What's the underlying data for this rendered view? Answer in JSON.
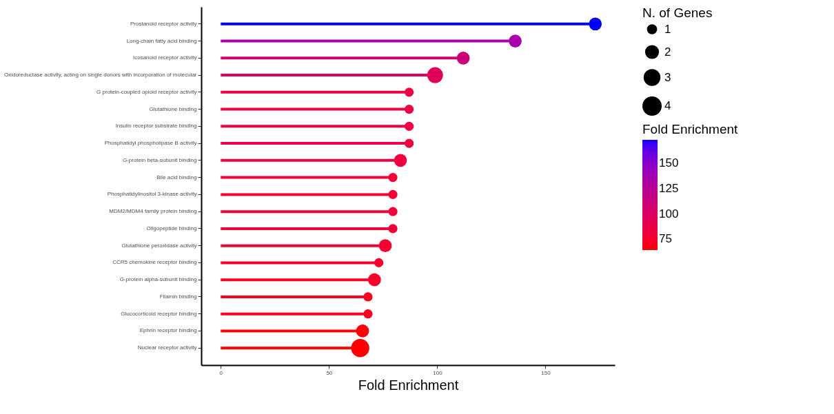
{
  "chart_data": {
    "type": "lollipop",
    "orientation": "horizontal",
    "categories": [
      "Prostanoid receptor activity",
      "Long-chain fatty acid binding",
      "Icosanoid receptor activity",
      "Oxidoreductase activity, acting on single donors with incorporation of molecular",
      "G protein-coupled opioid receptor activity",
      "Glutathione binding",
      "Insulin receptor substrate binding",
      "Phosphatidyl phospholipase B activity",
      "G-protein beta-subunit binding",
      "Bile acid binding",
      "Phosphatidylinositol 3-kinase activity",
      "MDM2/MDM4 family protein binding",
      "Oligopeptide binding",
      "Glutathione peroxidase activity",
      "CCR5 chemokine receptor binding",
      "G-protein alpha-subunit binding",
      "Filamin binding",
      "Glucocorticoid receptor binding",
      "Ephrin receptor binding",
      "Nuclear receptor activity"
    ],
    "values": [
      173,
      136,
      112,
      99,
      87,
      87,
      87,
      87,
      83,
      79.5,
      79.5,
      79.5,
      79.5,
      76,
      73,
      71,
      68,
      68,
      65.5,
      64.4
    ],
    "sizes": [
      2,
      2,
      2,
      3,
      1,
      1,
      1,
      1,
      2,
      1,
      1,
      1,
      1,
      2,
      1,
      2,
      1,
      1,
      2,
      4
    ],
    "size_legend": [
      1,
      2,
      3,
      4
    ],
    "colors": [
      "#0000ff",
      "#aa00aa",
      "#cc0077",
      "#e0005a",
      "#ee0044",
      "#ee0044",
      "#ee0044",
      "#ee0044",
      "#ef0040",
      "#f20038",
      "#f20038",
      "#f20038",
      "#f20038",
      "#f50033",
      "#f7002d",
      "#f80028",
      "#fb0020",
      "#fb0020",
      "#fe0008",
      "#ff0000"
    ],
    "xlabel": "Fold Enrichment",
    "xlim": [
      -9,
      182
    ],
    "xticks": [
      0,
      50,
      100,
      150
    ],
    "legend_title": "N. of Genes",
    "clabel": "Fold Enrichment",
    "cticks": [
      75,
      100,
      125,
      150
    ],
    "clim": [
      64.4,
      173
    ],
    "grid": false
  }
}
